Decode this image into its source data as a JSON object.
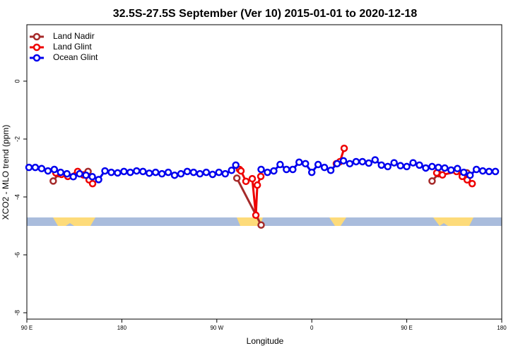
{
  "chart_data": {
    "type": "line",
    "title": "32.5S-27.5S September (Ver 10)   2015-01-01 to 2020-12-18",
    "x_label": "Longitude",
    "y_label": "XCO2 - MLO trend (ppm)",
    "xlim": [
      90,
      540
    ],
    "ylim": [
      -8.22,
      1.95
    ],
    "xticks": [
      {
        "value": 90,
        "label": "90 E"
      },
      180,
      {
        "value": 270,
        "label": "90 W"
      },
      {
        "value": 360,
        "label": "0"
      },
      {
        "value": 450,
        "label": "90 E"
      },
      180
    ],
    "yticks": [
      -8,
      -6,
      -4,
      -2,
      0
    ],
    "legend": "top-left",
    "series": [
      {
        "name": "Land Nadir",
        "color": "#a52a2a",
        "x": [
          115,
          120,
          null,
          148,
          null,
          289,
          312,
          null,
          474,
          480,
          null,
          507
        ],
        "values": [
          -3.45,
          -3.2,
          null,
          -3.12,
          null,
          -3.35,
          -4.97,
          null,
          -3.45,
          -3.2,
          null,
          -3.17
        ]
      },
      {
        "name": "Land Glint",
        "color": "#ee0000",
        "x": [
          117.5,
          122.8,
          128.8,
          138.2,
          143.6,
          149,
          152.3,
          null,
          291.5,
          292.9,
          297.6,
          303.6,
          307,
          308.4,
          311.7,
          null,
          383.3,
          386.7,
          390.7,
          null,
          478.4,
          483.8,
          497.2,
          502.6,
          507.3,
          512
        ],
        "values": [
          -3.17,
          -3.22,
          -3.29,
          -3.12,
          -3.24,
          -3.41,
          -3.54,
          null,
          -3.05,
          -3.1,
          -3.46,
          -3.37,
          -4.63,
          -3.59,
          -3.29,
          null,
          -2.85,
          -2.78,
          -2.32,
          null,
          -3.17,
          -3.24,
          -3.12,
          -3.29,
          -3.41,
          -3.54
        ]
      },
      {
        "name": "Ocean Glint",
        "color": "#0000ee",
        "x": [
          92,
          98,
          104,
          110,
          116,
          122,
          128,
          134,
          140,
          146,
          152,
          158,
          164,
          170,
          176,
          182,
          188,
          194,
          200,
          206,
          212,
          218,
          224,
          230,
          236,
          242,
          248,
          254,
          260,
          266,
          272,
          278,
          284,
          288,
          null,
          312,
          318,
          324,
          330,
          336,
          342,
          348,
          354,
          360,
          366,
          372,
          378,
          384,
          390,
          396,
          402,
          408,
          414,
          420,
          426,
          432,
          438,
          444,
          450,
          456,
          462,
          468,
          474,
          480,
          486,
          492,
          498,
          504,
          510,
          516,
          522,
          528,
          534
        ],
        "values": [
          -2.98,
          -2.98,
          -3.02,
          -3.1,
          -3.05,
          -3.15,
          -3.2,
          -3.3,
          -3.2,
          -3.25,
          -3.3,
          -3.4,
          -3.1,
          -3.15,
          -3.17,
          -3.12,
          -3.15,
          -3.1,
          -3.12,
          -3.18,
          -3.15,
          -3.2,
          -3.15,
          -3.25,
          -3.2,
          -3.12,
          -3.15,
          -3.2,
          -3.15,
          -3.22,
          -3.15,
          -3.2,
          -3.08,
          -2.9,
          null,
          -3.05,
          -3.15,
          -3.1,
          -2.88,
          -3.05,
          -3.05,
          -2.8,
          -2.85,
          -3.15,
          -2.88,
          -2.98,
          -3.08,
          -2.85,
          -2.75,
          -2.85,
          -2.78,
          -2.78,
          -2.83,
          -2.72,
          -2.9,
          -2.95,
          -2.82,
          -2.92,
          -2.95,
          -2.82,
          -2.9,
          -3.0,
          -2.95,
          -2.98,
          -3.0,
          -3.07,
          -3.02,
          -3.15,
          -3.25,
          -3.05,
          -3.1,
          -3.12,
          -3.12
        ]
      }
    ]
  }
}
